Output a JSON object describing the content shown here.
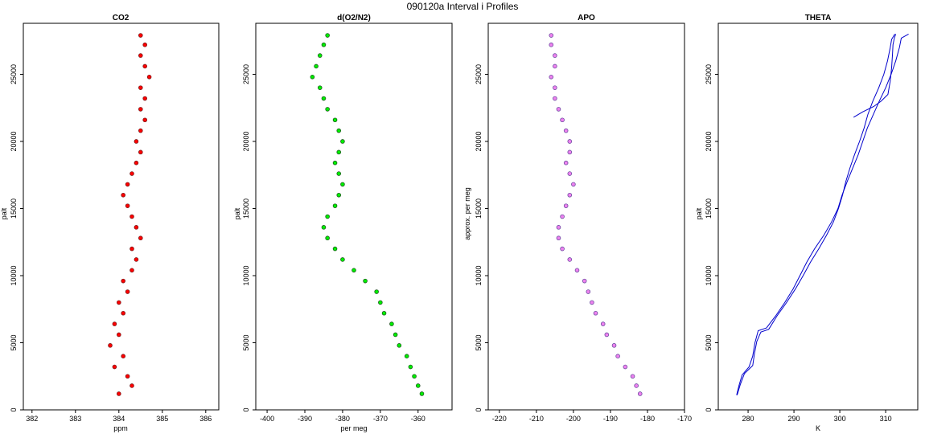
{
  "page_title": "090120a   Interval i Profiles",
  "chart_data": [
    {
      "type": "scatter",
      "title": "CO2",
      "xlabel": "ppm",
      "ylabel": "palt",
      "xlim": [
        381.8,
        386.3
      ],
      "ylim": [
        0,
        28800
      ],
      "xticks": [
        382,
        383,
        384,
        385,
        386
      ],
      "yticks": [
        0,
        5000,
        10000,
        15000,
        20000,
        25000
      ],
      "grid": false,
      "fill_color": "#ff0000",
      "edge_color": "#7a1a1a",
      "series": [
        {
          "values": [
            {
              "y": 1200,
              "x": 384.0
            },
            {
              "y": 1800,
              "x": 384.3
            },
            {
              "y": 2500,
              "x": 384.2
            },
            {
              "y": 3200,
              "x": 383.9
            },
            {
              "y": 4000,
              "x": 384.1
            },
            {
              "y": 4800,
              "x": 383.8
            },
            {
              "y": 5600,
              "x": 384.0
            },
            {
              "y": 6400,
              "x": 383.9
            },
            {
              "y": 7200,
              "x": 384.1
            },
            {
              "y": 8000,
              "x": 384.0
            },
            {
              "y": 8800,
              "x": 384.2
            },
            {
              "y": 9600,
              "x": 384.1
            },
            {
              "y": 10400,
              "x": 384.3
            },
            {
              "y": 11200,
              "x": 384.4
            },
            {
              "y": 12000,
              "x": 384.3
            },
            {
              "y": 12800,
              "x": 384.5
            },
            {
              "y": 13600,
              "x": 384.4
            },
            {
              "y": 14400,
              "x": 384.3
            },
            {
              "y": 15200,
              "x": 384.2
            },
            {
              "y": 16000,
              "x": 384.1
            },
            {
              "y": 16800,
              "x": 384.2
            },
            {
              "y": 17600,
              "x": 384.3
            },
            {
              "y": 18400,
              "x": 384.4
            },
            {
              "y": 19200,
              "x": 384.5
            },
            {
              "y": 20000,
              "x": 384.4
            },
            {
              "y": 20800,
              "x": 384.5
            },
            {
              "y": 21600,
              "x": 384.6
            },
            {
              "y": 22400,
              "x": 384.5
            },
            {
              "y": 23200,
              "x": 384.6
            },
            {
              "y": 24000,
              "x": 384.5
            },
            {
              "y": 24800,
              "x": 384.7
            },
            {
              "y": 25600,
              "x": 384.6
            },
            {
              "y": 26400,
              "x": 384.5
            },
            {
              "y": 27200,
              "x": 384.6
            },
            {
              "y": 27900,
              "x": 384.5
            }
          ]
        }
      ]
    },
    {
      "type": "scatter",
      "title": "d(O2/N2)",
      "xlabel": "per meg",
      "ylabel": "palt",
      "xlim": [
        -403,
        -351
      ],
      "ylim": [
        0,
        28800
      ],
      "xticks": [
        -400,
        -390,
        -380,
        -370,
        -360
      ],
      "yticks": [
        0,
        5000,
        10000,
        15000,
        20000,
        25000
      ],
      "grid": false,
      "fill_color": "#00ee00",
      "edge_color": "#1e5a1e",
      "series": [
        {
          "values": [
            {
              "y": 1200,
              "x": -359
            },
            {
              "y": 1800,
              "x": -360
            },
            {
              "y": 2500,
              "x": -361
            },
            {
              "y": 3200,
              "x": -362
            },
            {
              "y": 4000,
              "x": -363
            },
            {
              "y": 4800,
              "x": -365
            },
            {
              "y": 5600,
              "x": -366
            },
            {
              "y": 6400,
              "x": -367
            },
            {
              "y": 7200,
              "x": -369
            },
            {
              "y": 8000,
              "x": -370
            },
            {
              "y": 8800,
              "x": -371
            },
            {
              "y": 9600,
              "x": -374
            },
            {
              "y": 10400,
              "x": -377
            },
            {
              "y": 11200,
              "x": -380
            },
            {
              "y": 12000,
              "x": -382
            },
            {
              "y": 12800,
              "x": -384
            },
            {
              "y": 13600,
              "x": -385
            },
            {
              "y": 14400,
              "x": -384
            },
            {
              "y": 15200,
              "x": -382
            },
            {
              "y": 16000,
              "x": -381
            },
            {
              "y": 16800,
              "x": -380
            },
            {
              "y": 17600,
              "x": -381
            },
            {
              "y": 18400,
              "x": -382
            },
            {
              "y": 19200,
              "x": -381
            },
            {
              "y": 20000,
              "x": -380
            },
            {
              "y": 20800,
              "x": -381
            },
            {
              "y": 21600,
              "x": -382
            },
            {
              "y": 22400,
              "x": -384
            },
            {
              "y": 23200,
              "x": -385
            },
            {
              "y": 24000,
              "x": -386
            },
            {
              "y": 24800,
              "x": -388
            },
            {
              "y": 25600,
              "x": -387
            },
            {
              "y": 26400,
              "x": -386
            },
            {
              "y": 27200,
              "x": -385
            },
            {
              "y": 27900,
              "x": -384
            }
          ]
        }
      ]
    },
    {
      "type": "scatter",
      "title": "APO",
      "xlabel": "",
      "ylabel": "approx. per meg",
      "xlim": [
        -223,
        -170
      ],
      "ylim": [
        0,
        28800
      ],
      "xticks": [
        -220,
        -210,
        -200,
        -190,
        -180,
        -170
      ],
      "yticks": [
        0,
        5000,
        10000,
        15000,
        20000,
        25000
      ],
      "grid": false,
      "fill_color": "#ee82ee",
      "edge_color": "#6a4aa0",
      "series": [
        {
          "values": [
            {
              "y": 1200,
              "x": -182
            },
            {
              "y": 1800,
              "x": -183
            },
            {
              "y": 2500,
              "x": -184
            },
            {
              "y": 3200,
              "x": -186
            },
            {
              "y": 4000,
              "x": -188
            },
            {
              "y": 4800,
              "x": -189
            },
            {
              "y": 5600,
              "x": -191
            },
            {
              "y": 6400,
              "x": -192
            },
            {
              "y": 7200,
              "x": -194
            },
            {
              "y": 8000,
              "x": -195
            },
            {
              "y": 8800,
              "x": -196
            },
            {
              "y": 9600,
              "x": -197
            },
            {
              "y": 10400,
              "x": -199
            },
            {
              "y": 11200,
              "x": -201
            },
            {
              "y": 12000,
              "x": -203
            },
            {
              "y": 12800,
              "x": -204
            },
            {
              "y": 13600,
              "x": -204
            },
            {
              "y": 14400,
              "x": -203
            },
            {
              "y": 15200,
              "x": -202
            },
            {
              "y": 16000,
              "x": -201
            },
            {
              "y": 16800,
              "x": -200
            },
            {
              "y": 17600,
              "x": -201
            },
            {
              "y": 18400,
              "x": -202
            },
            {
              "y": 19200,
              "x": -201
            },
            {
              "y": 20000,
              "x": -201
            },
            {
              "y": 20800,
              "x": -202
            },
            {
              "y": 21600,
              "x": -203
            },
            {
              "y": 22400,
              "x": -204
            },
            {
              "y": 23200,
              "x": -205
            },
            {
              "y": 24000,
              "x": -205
            },
            {
              "y": 24800,
              "x": -206
            },
            {
              "y": 25600,
              "x": -205
            },
            {
              "y": 26400,
              "x": -205
            },
            {
              "y": 27200,
              "x": -206
            },
            {
              "y": 27900,
              "x": -206
            }
          ]
        }
      ]
    },
    {
      "type": "line",
      "title": "THETA",
      "xlabel": "K",
      "ylabel": "palt",
      "xlim": [
        273.5,
        317
      ],
      "ylim": [
        0,
        28800
      ],
      "xticks": [
        280,
        290,
        300,
        310
      ],
      "yticks": [
        0,
        5000,
        10000,
        15000,
        20000,
        25000
      ],
      "grid": false,
      "line_color": "#0000cc",
      "series": [
        {
          "values": [
            {
              "y": 1100,
              "x": 277.5
            },
            {
              "y": 1800,
              "x": 278.0
            },
            {
              "y": 2600,
              "x": 278.7
            },
            {
              "y": 3200,
              "x": 280.2
            },
            {
              "y": 4000,
              "x": 281.0
            },
            {
              "y": 5000,
              "x": 281.5
            },
            {
              "y": 5900,
              "x": 282.2
            },
            {
              "y": 6100,
              "x": 284.0
            },
            {
              "y": 7000,
              "x": 286.0
            },
            {
              "y": 8000,
              "x": 288.0
            },
            {
              "y": 9000,
              "x": 289.8
            },
            {
              "y": 10000,
              "x": 291.3
            },
            {
              "y": 11000,
              "x": 292.8
            },
            {
              "y": 12000,
              "x": 294.5
            },
            {
              "y": 13000,
              "x": 296.5
            },
            {
              "y": 14000,
              "x": 298.2
            },
            {
              "y": 15000,
              "x": 299.6
            },
            {
              "y": 16000,
              "x": 300.5
            },
            {
              "y": 17000,
              "x": 301.6
            },
            {
              "y": 18000,
              "x": 302.8
            },
            {
              "y": 19000,
              "x": 304.0
            },
            {
              "y": 20000,
              "x": 305.0
            },
            {
              "y": 21000,
              "x": 306.0
            },
            {
              "y": 22000,
              "x": 307.3
            },
            {
              "y": 23000,
              "x": 308.6
            },
            {
              "y": 24000,
              "x": 310.0
            },
            {
              "y": 25000,
              "x": 311.2
            },
            {
              "y": 26000,
              "x": 312.2
            },
            {
              "y": 27000,
              "x": 313.0
            },
            {
              "y": 27700,
              "x": 313.4
            },
            {
              "y": 28000,
              "x": 315.0
            }
          ]
        },
        {
          "values": [
            {
              "y": 1100,
              "x": 277.6
            },
            {
              "y": 1900,
              "x": 278.3
            },
            {
              "y": 2700,
              "x": 279.2
            },
            {
              "y": 3300,
              "x": 281.0
            },
            {
              "y": 4200,
              "x": 281.4
            },
            {
              "y": 5100,
              "x": 281.9
            },
            {
              "y": 5800,
              "x": 282.8
            },
            {
              "y": 6000,
              "x": 284.5
            },
            {
              "y": 7000,
              "x": 286.3
            },
            {
              "y": 8000,
              "x": 288.4
            },
            {
              "y": 9000,
              "x": 290.3
            },
            {
              "y": 10000,
              "x": 292.0
            },
            {
              "y": 11000,
              "x": 293.6
            },
            {
              "y": 12000,
              "x": 295.4
            },
            {
              "y": 13000,
              "x": 297.1
            },
            {
              "y": 14000,
              "x": 298.6
            },
            {
              "y": 15000,
              "x": 299.7
            },
            {
              "y": 16000,
              "x": 300.6
            },
            {
              "y": 17000,
              "x": 301.3
            },
            {
              "y": 18000,
              "x": 302.2
            },
            {
              "y": 19000,
              "x": 303.2
            },
            {
              "y": 20000,
              "x": 304.3
            },
            {
              "y": 21000,
              "x": 305.3
            },
            {
              "y": 22000,
              "x": 306.1
            },
            {
              "y": 23000,
              "x": 307.2
            },
            {
              "y": 24000,
              "x": 308.5
            },
            {
              "y": 25000,
              "x": 309.6
            },
            {
              "y": 26000,
              "x": 310.4
            },
            {
              "y": 27000,
              "x": 311.0
            },
            {
              "y": 27600,
              "x": 311.3
            },
            {
              "y": 28000,
              "x": 312.0
            }
          ]
        },
        {
          "values": [
            {
              "y": 21800,
              "x": 303.0
            },
            {
              "y": 22200,
              "x": 305.0
            },
            {
              "y": 22600,
              "x": 307.4
            },
            {
              "y": 23000,
              "x": 309.0
            },
            {
              "y": 23500,
              "x": 310.5
            },
            {
              "y": 24500,
              "x": 311.0
            },
            {
              "y": 25500,
              "x": 311.3
            },
            {
              "y": 26500,
              "x": 311.5
            },
            {
              "y": 27200,
              "x": 311.6
            },
            {
              "y": 27700,
              "x": 311.9
            },
            {
              "y": 28000,
              "x": 312.2
            }
          ]
        }
      ]
    }
  ]
}
